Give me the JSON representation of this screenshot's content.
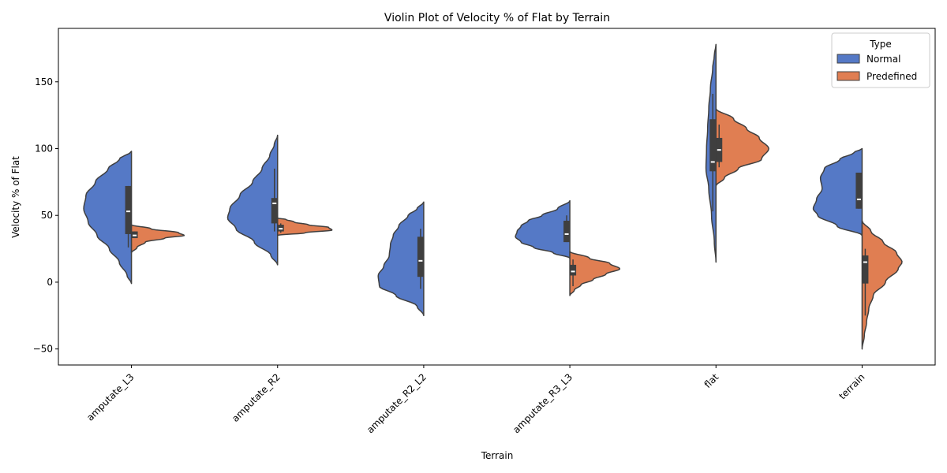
{
  "chart_data": {
    "type": "violin",
    "title": "Violin Plot of Velocity % of Flat by Terrain",
    "xlabel": "Terrain",
    "ylabel": "Velocity % of Flat",
    "ylim": [
      -62,
      190
    ],
    "yticks": [
      -50,
      0,
      50,
      100,
      150
    ],
    "categories": [
      "amputate_L3",
      "amputate_R2",
      "amputate_R2_L2",
      "amputate_R3_L3",
      "flat",
      "terrain"
    ],
    "legend": {
      "title": "Type",
      "position": "top-right"
    },
    "series": [
      {
        "name": "Normal",
        "color": "#5579c6",
        "violins": [
          {
            "range": [
              -1,
              98
            ],
            "q1": 36,
            "median": 53,
            "q3": 72,
            "whisker": [
              26,
              72
            ],
            "density": [
              [
                -1,
                0
              ],
              [
                5,
                0.08
              ],
              [
                15,
                0.22
              ],
              [
                25,
                0.4
              ],
              [
                35,
                0.62
              ],
              [
                45,
                0.78
              ],
              [
                55,
                0.86
              ],
              [
                65,
                0.82
              ],
              [
                75,
                0.65
              ],
              [
                85,
                0.42
              ],
              [
                92,
                0.22
              ],
              [
                98,
                0
              ]
            ]
          },
          {
            "range": [
              13,
              110
            ],
            "q1": 44,
            "median": 59,
            "q3": 63,
            "whisker": [
              38,
              85
            ],
            "density": [
              [
                13,
                0
              ],
              [
                20,
                0.12
              ],
              [
                30,
                0.42
              ],
              [
                40,
                0.75
              ],
              [
                48,
                0.9
              ],
              [
                55,
                0.86
              ],
              [
                65,
                0.68
              ],
              [
                75,
                0.45
              ],
              [
                85,
                0.28
              ],
              [
                95,
                0.14
              ],
              [
                103,
                0.06
              ],
              [
                110,
                0
              ]
            ]
          },
          {
            "range": [
              -25,
              60
            ],
            "q1": 4,
            "median": 16,
            "q3": 34,
            "whisker": [
              -5,
              40
            ],
            "density": [
              [
                -25,
                0
              ],
              [
                -18,
                0.12
              ],
              [
                -10,
                0.5
              ],
              [
                -3,
                0.8
              ],
              [
                5,
                0.82
              ],
              [
                12,
                0.72
              ],
              [
                20,
                0.62
              ],
              [
                28,
                0.6
              ],
              [
                35,
                0.55
              ],
              [
                42,
                0.45
              ],
              [
                50,
                0.28
              ],
              [
                55,
                0.12
              ],
              [
                60,
                0
              ]
            ]
          },
          {
            "range": [
              18,
              61
            ],
            "q1": 30,
            "median": 36,
            "q3": 46,
            "whisker": [
              30,
              50
            ],
            "density": [
              [
                18,
                0
              ],
              [
                22,
                0.3
              ],
              [
                26,
                0.65
              ],
              [
                30,
                0.88
              ],
              [
                34,
                0.98
              ],
              [
                38,
                0.95
              ],
              [
                42,
                0.88
              ],
              [
                46,
                0.75
              ],
              [
                50,
                0.5
              ],
              [
                55,
                0.22
              ],
              [
                61,
                0
              ]
            ]
          },
          {
            "range": [
              15,
              178
            ],
            "q1": 83,
            "median": 90,
            "q3": 122,
            "whisker": [
              53,
              141
            ],
            "density": [
              [
                15,
                0
              ],
              [
                30,
                0.03
              ],
              [
                50,
                0.08
              ],
              [
                70,
                0.13
              ],
              [
                85,
                0.18
              ],
              [
                100,
                0.17
              ],
              [
                115,
                0.15
              ],
              [
                130,
                0.13
              ],
              [
                145,
                0.1
              ],
              [
                160,
                0.06
              ],
              [
                170,
                0.03
              ],
              [
                178,
                0
              ]
            ]
          },
          {
            "range": [
              35,
              100
            ],
            "q1": 55,
            "median": 62,
            "q3": 82,
            "whisker": [
              55,
              82
            ],
            "density": [
              [
                35,
                0
              ],
              [
                42,
                0.45
              ],
              [
                50,
                0.8
              ],
              [
                55,
                0.88
              ],
              [
                62,
                0.82
              ],
              [
                70,
                0.72
              ],
              [
                78,
                0.75
              ],
              [
                85,
                0.68
              ],
              [
                92,
                0.4
              ],
              [
                97,
                0.15
              ],
              [
                100,
                0
              ]
            ]
          }
        ]
      },
      {
        "name": "Predefined",
        "color": "#e07e52",
        "violins": [
          {
            "range": [
              22,
              43
            ],
            "q1": 33,
            "median": 35,
            "q3": 38,
            "whisker": [
              33,
              38
            ],
            "density": [
              [
                22,
                0
              ],
              [
                26,
                0.1
              ],
              [
                30,
                0.25
              ],
              [
                33,
                0.6
              ],
              [
                35,
                0.95
              ],
              [
                37,
                0.85
              ],
              [
                40,
                0.35
              ],
              [
                43,
                0
              ]
            ]
          },
          {
            "range": [
              35,
              48
            ],
            "q1": 38,
            "median": 40,
            "q3": 43,
            "whisker": [
              37,
              44
            ],
            "density": [
              [
                35,
                0
              ],
              [
                37,
                0.5
              ],
              [
                39,
                0.98
              ],
              [
                41,
                0.92
              ],
              [
                43,
                0.55
              ],
              [
                45,
                0.3
              ],
              [
                47,
                0.15
              ],
              [
                48,
                0
              ]
            ]
          },
          {
            "range": [
              -10,
              23
            ],
            "q1": 5,
            "median": 8,
            "q3": 13,
            "whisker": [
              -3,
              17
            ],
            "density": [
              [
                -10,
                0
              ],
              [
                -6,
                0.08
              ],
              [
                -2,
                0.2
              ],
              [
                2,
                0.42
              ],
              [
                6,
                0.65
              ],
              [
                10,
                0.9
              ],
              [
                14,
                0.72
              ],
              [
                18,
                0.35
              ],
              [
                23,
                0
              ]
            ]
          },
          {
            "range": [
              72,
              130
            ],
            "q1": 90,
            "median": 99,
            "q3": 108,
            "whisker": [
              86,
              118
            ],
            "density": [
              [
                72,
                0
              ],
              [
                78,
                0.15
              ],
              [
                85,
                0.4
              ],
              [
                92,
                0.82
              ],
              [
                100,
                0.95
              ],
              [
                108,
                0.78
              ],
              [
                115,
                0.55
              ],
              [
                122,
                0.32
              ],
              [
                130,
                0
              ]
            ]
          },
          {
            "range": [
              -50,
              46
            ],
            "q1": -1,
            "median": 15,
            "q3": 20,
            "whisker": [
              -25,
              25
            ],
            "density": [
              [
                -50,
                0
              ],
              [
                -40,
                0.04
              ],
              [
                -30,
                0.08
              ],
              [
                -20,
                0.12
              ],
              [
                -10,
                0.2
              ],
              [
                0,
                0.42
              ],
              [
                10,
                0.65
              ],
              [
                15,
                0.72
              ],
              [
                22,
                0.62
              ],
              [
                30,
                0.38
              ],
              [
                38,
                0.16
              ],
              [
                46,
                0
              ]
            ]
          }
        ],
        "violin_categories": [
          "amputate_L3",
          "amputate_R2",
          "amputate_R3_L3",
          "flat",
          "terrain"
        ]
      }
    ]
  }
}
